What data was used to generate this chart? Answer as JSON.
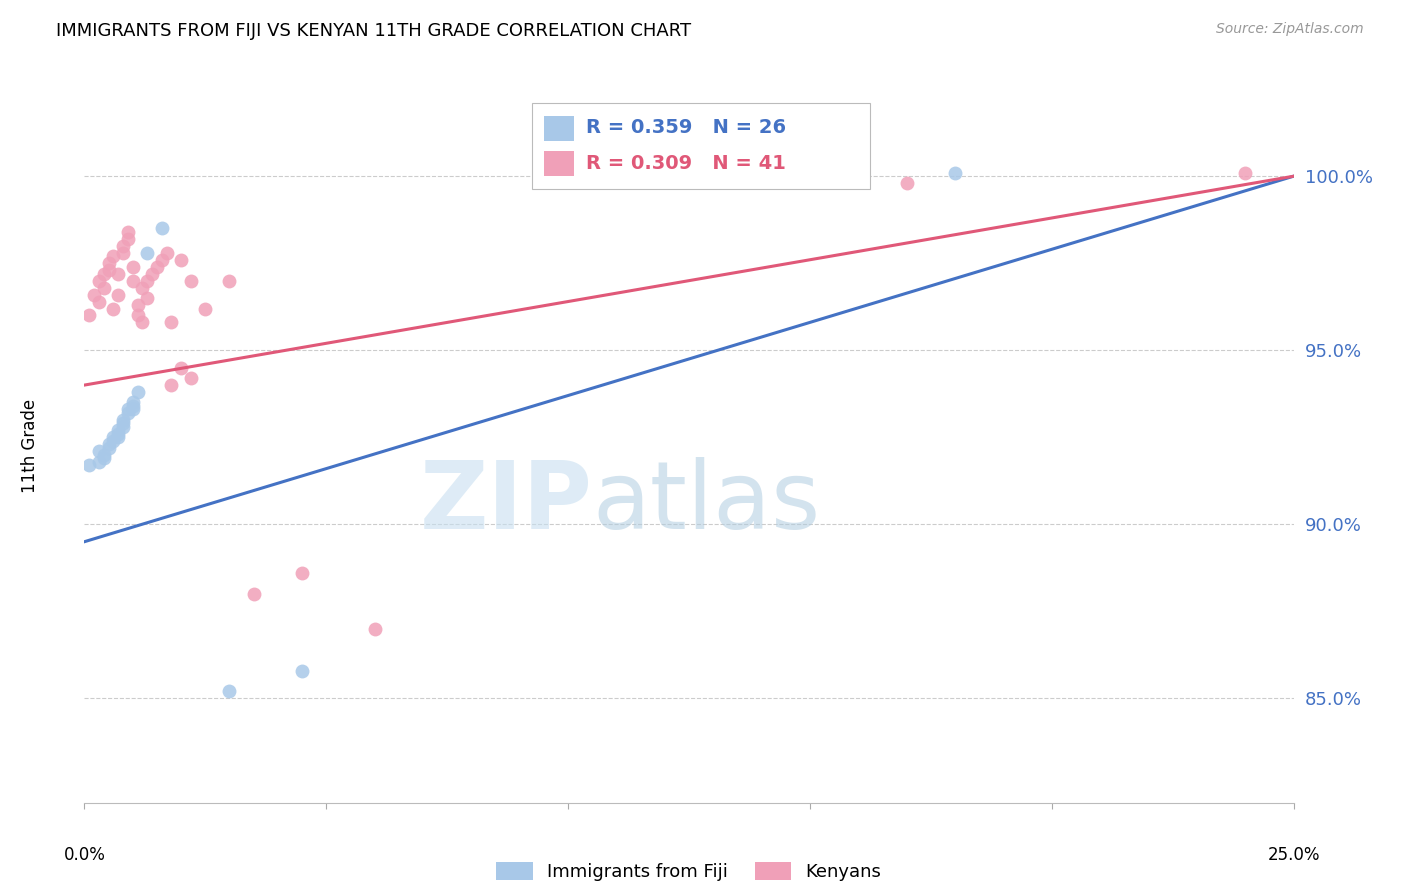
{
  "title": "IMMIGRANTS FROM FIJI VS KENYAN 11TH GRADE CORRELATION CHART",
  "source": "Source: ZipAtlas.com",
  "ylabel": "11th Grade",
  "ytick_labels": [
    "85.0%",
    "90.0%",
    "95.0%",
    "100.0%"
  ],
  "ytick_values": [
    0.85,
    0.9,
    0.95,
    1.0
  ],
  "xlim": [
    0.0,
    0.25
  ],
  "ylim": [
    0.82,
    1.025
  ],
  "fiji_color": "#a8c8e8",
  "kenyan_color": "#f0a0b8",
  "fiji_line_color": "#4472c4",
  "kenyan_line_color": "#e05878",
  "legend_fiji_label": "R = 0.359   N = 26",
  "legend_kenyan_label": "R = 0.309   N = 41",
  "bottom_legend_fiji": "Immigrants from Fiji",
  "bottom_legend_kenyan": "Kenyans",
  "fiji_points_x": [
    0.001,
    0.003,
    0.003,
    0.004,
    0.004,
    0.005,
    0.005,
    0.006,
    0.006,
    0.007,
    0.007,
    0.007,
    0.008,
    0.008,
    0.008,
    0.009,
    0.009,
    0.01,
    0.01,
    0.01,
    0.011,
    0.013,
    0.016,
    0.18,
    0.03,
    0.045
  ],
  "fiji_points_y": [
    0.917,
    0.921,
    0.918,
    0.92,
    0.919,
    0.923,
    0.922,
    0.925,
    0.924,
    0.927,
    0.926,
    0.925,
    0.93,
    0.929,
    0.928,
    0.933,
    0.932,
    0.935,
    0.934,
    0.933,
    0.938,
    0.978,
    0.985,
    1.001,
    0.852,
    0.858
  ],
  "kenyan_points_x": [
    0.001,
    0.002,
    0.003,
    0.003,
    0.004,
    0.004,
    0.005,
    0.005,
    0.006,
    0.006,
    0.007,
    0.007,
    0.008,
    0.008,
    0.009,
    0.009,
    0.01,
    0.01,
    0.011,
    0.011,
    0.012,
    0.012,
    0.013,
    0.013,
    0.014,
    0.015,
    0.016,
    0.017,
    0.018,
    0.02,
    0.022,
    0.025,
    0.03,
    0.018,
    0.02,
    0.022,
    0.06,
    0.17,
    0.24,
    0.035,
    0.045
  ],
  "kenyan_points_y": [
    0.96,
    0.966,
    0.964,
    0.97,
    0.968,
    0.972,
    0.973,
    0.975,
    0.962,
    0.977,
    0.966,
    0.972,
    0.98,
    0.978,
    0.982,
    0.984,
    0.974,
    0.97,
    0.963,
    0.96,
    0.958,
    0.968,
    0.965,
    0.97,
    0.972,
    0.974,
    0.976,
    0.978,
    0.958,
    0.976,
    0.97,
    0.962,
    0.97,
    0.94,
    0.945,
    0.942,
    0.87,
    0.998,
    1.001,
    0.88,
    0.886
  ]
}
